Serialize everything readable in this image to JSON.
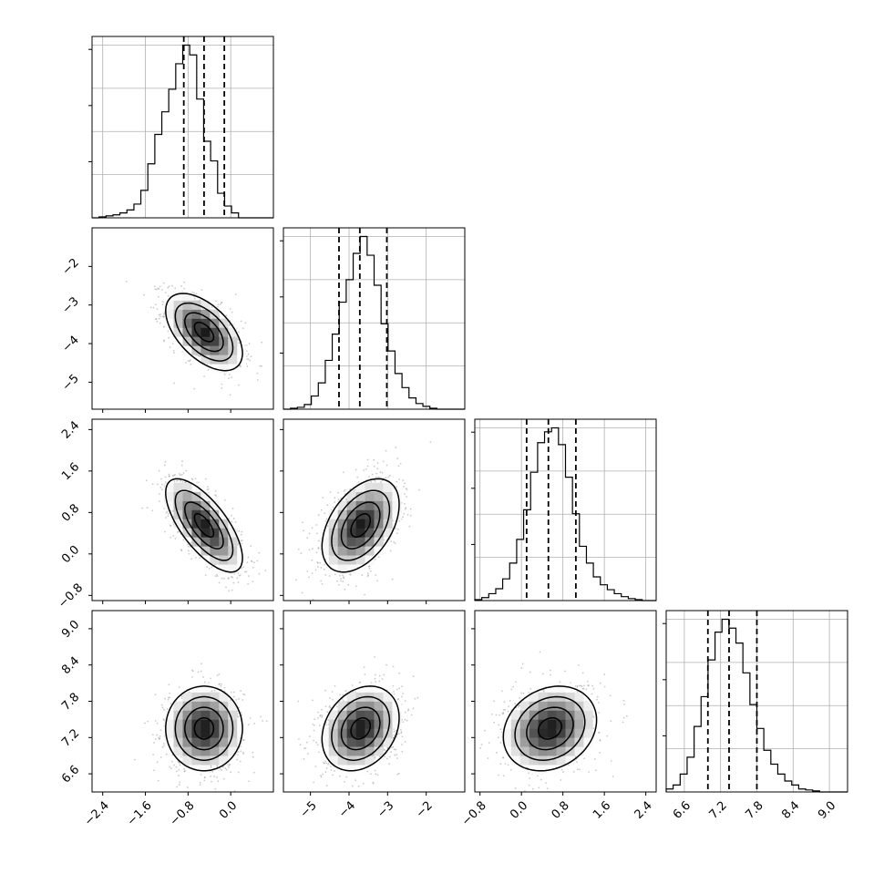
{
  "chart_data": {
    "type": "corner",
    "title": "",
    "parameters": [
      {
        "mean": -0.5,
        "sd": 0.36,
        "range": [
          -2.6,
          0.8
        ],
        "ticks": [
          -2.4,
          -1.6,
          -0.8,
          0.0
        ],
        "tick_labels": [
          "−2.4",
          "−1.6",
          "−0.8",
          "0.0"
        ],
        "quantiles": [
          -0.88,
          -0.5,
          -0.12
        ],
        "hist_bins": [
          -2.6,
          -2.469,
          -2.338,
          -2.208,
          -2.077,
          -1.946,
          -1.815,
          -1.685,
          -1.554,
          -1.423,
          -1.292,
          -1.162,
          -1.031,
          -0.9,
          -0.769,
          -0.638,
          -0.508,
          -0.377,
          -0.246,
          -0.115,
          0.015,
          0.146,
          0.277,
          0.408,
          0.538,
          0.669,
          0.8
        ],
        "hist_counts": [
          0,
          1,
          2,
          3,
          5,
          8,
          14,
          28,
          55,
          85,
          108,
          131,
          157,
          176,
          166,
          121,
          78,
          58,
          25,
          12,
          5,
          0,
          0,
          0,
          0,
          0
        ]
      },
      {
        "mean": -3.7,
        "sd": 0.5,
        "range": [
          -5.7,
          -1.0
        ],
        "ticks": [
          -5,
          -4,
          -3,
          -2
        ],
        "tick_labels": [
          "−5",
          "−4",
          "−3",
          "−2"
        ],
        "quantiles": [
          -4.26,
          -3.72,
          -3.02
        ],
        "hist_bins": [
          -5.7,
          -5.519,
          -5.338,
          -5.158,
          -4.977,
          -4.796,
          -4.615,
          -4.435,
          -4.254,
          -4.073,
          -3.892,
          -3.712,
          -3.531,
          -3.35,
          -3.169,
          -2.988,
          -2.808,
          -2.627,
          -2.446,
          -2.265,
          -2.085,
          -1.904,
          -1.723,
          -1.542,
          -1.362,
          -1.181,
          -1.0
        ],
        "hist_counts": [
          0,
          1,
          2,
          5,
          14,
          28,
          52,
          80,
          114,
          138,
          166,
          184,
          164,
          132,
          91,
          62,
          38,
          23,
          12,
          6,
          3,
          1,
          0,
          0,
          0,
          0
        ]
      },
      {
        "mean": 0.55,
        "sd": 0.45,
        "range": [
          -0.9,
          2.6
        ],
        "ticks": [
          -0.8,
          0.0,
          0.8,
          1.6,
          2.4
        ],
        "tick_labels": [
          "−0.8",
          "0.0",
          "0.8",
          "1.6",
          "2.4"
        ],
        "quantiles": [
          0.1,
          0.52,
          1.05
        ],
        "hist_bins": [
          -0.9,
          -0.765,
          -0.631,
          -0.496,
          -0.362,
          -0.227,
          -0.092,
          0.042,
          0.177,
          0.312,
          0.446,
          0.581,
          0.715,
          0.85,
          0.985,
          1.119,
          1.254,
          1.388,
          1.523,
          1.658,
          1.792,
          1.927,
          2.062,
          2.196,
          2.331,
          2.465,
          2.6
        ],
        "hist_counts": [
          1,
          3,
          7,
          12,
          22,
          38,
          62,
          92,
          130,
          160,
          171,
          175,
          158,
          125,
          88,
          55,
          38,
          24,
          16,
          11,
          7,
          4,
          2,
          1,
          0,
          0
        ]
      },
      {
        "mean": 7.35,
        "sd": 0.35,
        "range": [
          6.3,
          9.3
        ],
        "ticks": [
          6.6,
          7.2,
          7.8,
          8.4,
          9.0
        ],
        "tick_labels": [
          "6.6",
          "7.2",
          "7.8",
          "8.4",
          "9.0"
        ],
        "quantiles": [
          6.99,
          7.34,
          7.8
        ],
        "hist_bins": [
          6.3,
          6.415,
          6.531,
          6.646,
          6.762,
          6.877,
          6.992,
          7.108,
          7.223,
          7.338,
          7.454,
          7.569,
          7.685,
          7.8,
          7.915,
          8.031,
          8.146,
          8.262,
          8.377,
          8.492,
          8.608,
          8.723,
          8.838,
          8.954,
          9.069,
          9.185,
          9.3
        ],
        "hist_counts": [
          3,
          7,
          18,
          35,
          66,
          96,
          133,
          161,
          174,
          165,
          150,
          120,
          88,
          64,
          42,
          28,
          18,
          11,
          7,
          3,
          2,
          1,
          0,
          0,
          0,
          0
        ]
      }
    ],
    "correlations": [
      [
        1.0,
        -0.55,
        -0.7,
        0.0
      ],
      [
        -0.55,
        1.0,
        0.45,
        0.25
      ],
      [
        -0.7,
        0.45,
        1.0,
        0.2
      ],
      [
        0.0,
        0.25,
        0.2,
        1.0
      ]
    ],
    "contour_levels_sigma": [
      0.5,
      1.0,
      1.5,
      2.0
    ],
    "colors": {
      "line": "#000000",
      "grid": "#b0b0b0",
      "points": "#8a8a8a",
      "density_max": "#1a1a1a"
    }
  }
}
